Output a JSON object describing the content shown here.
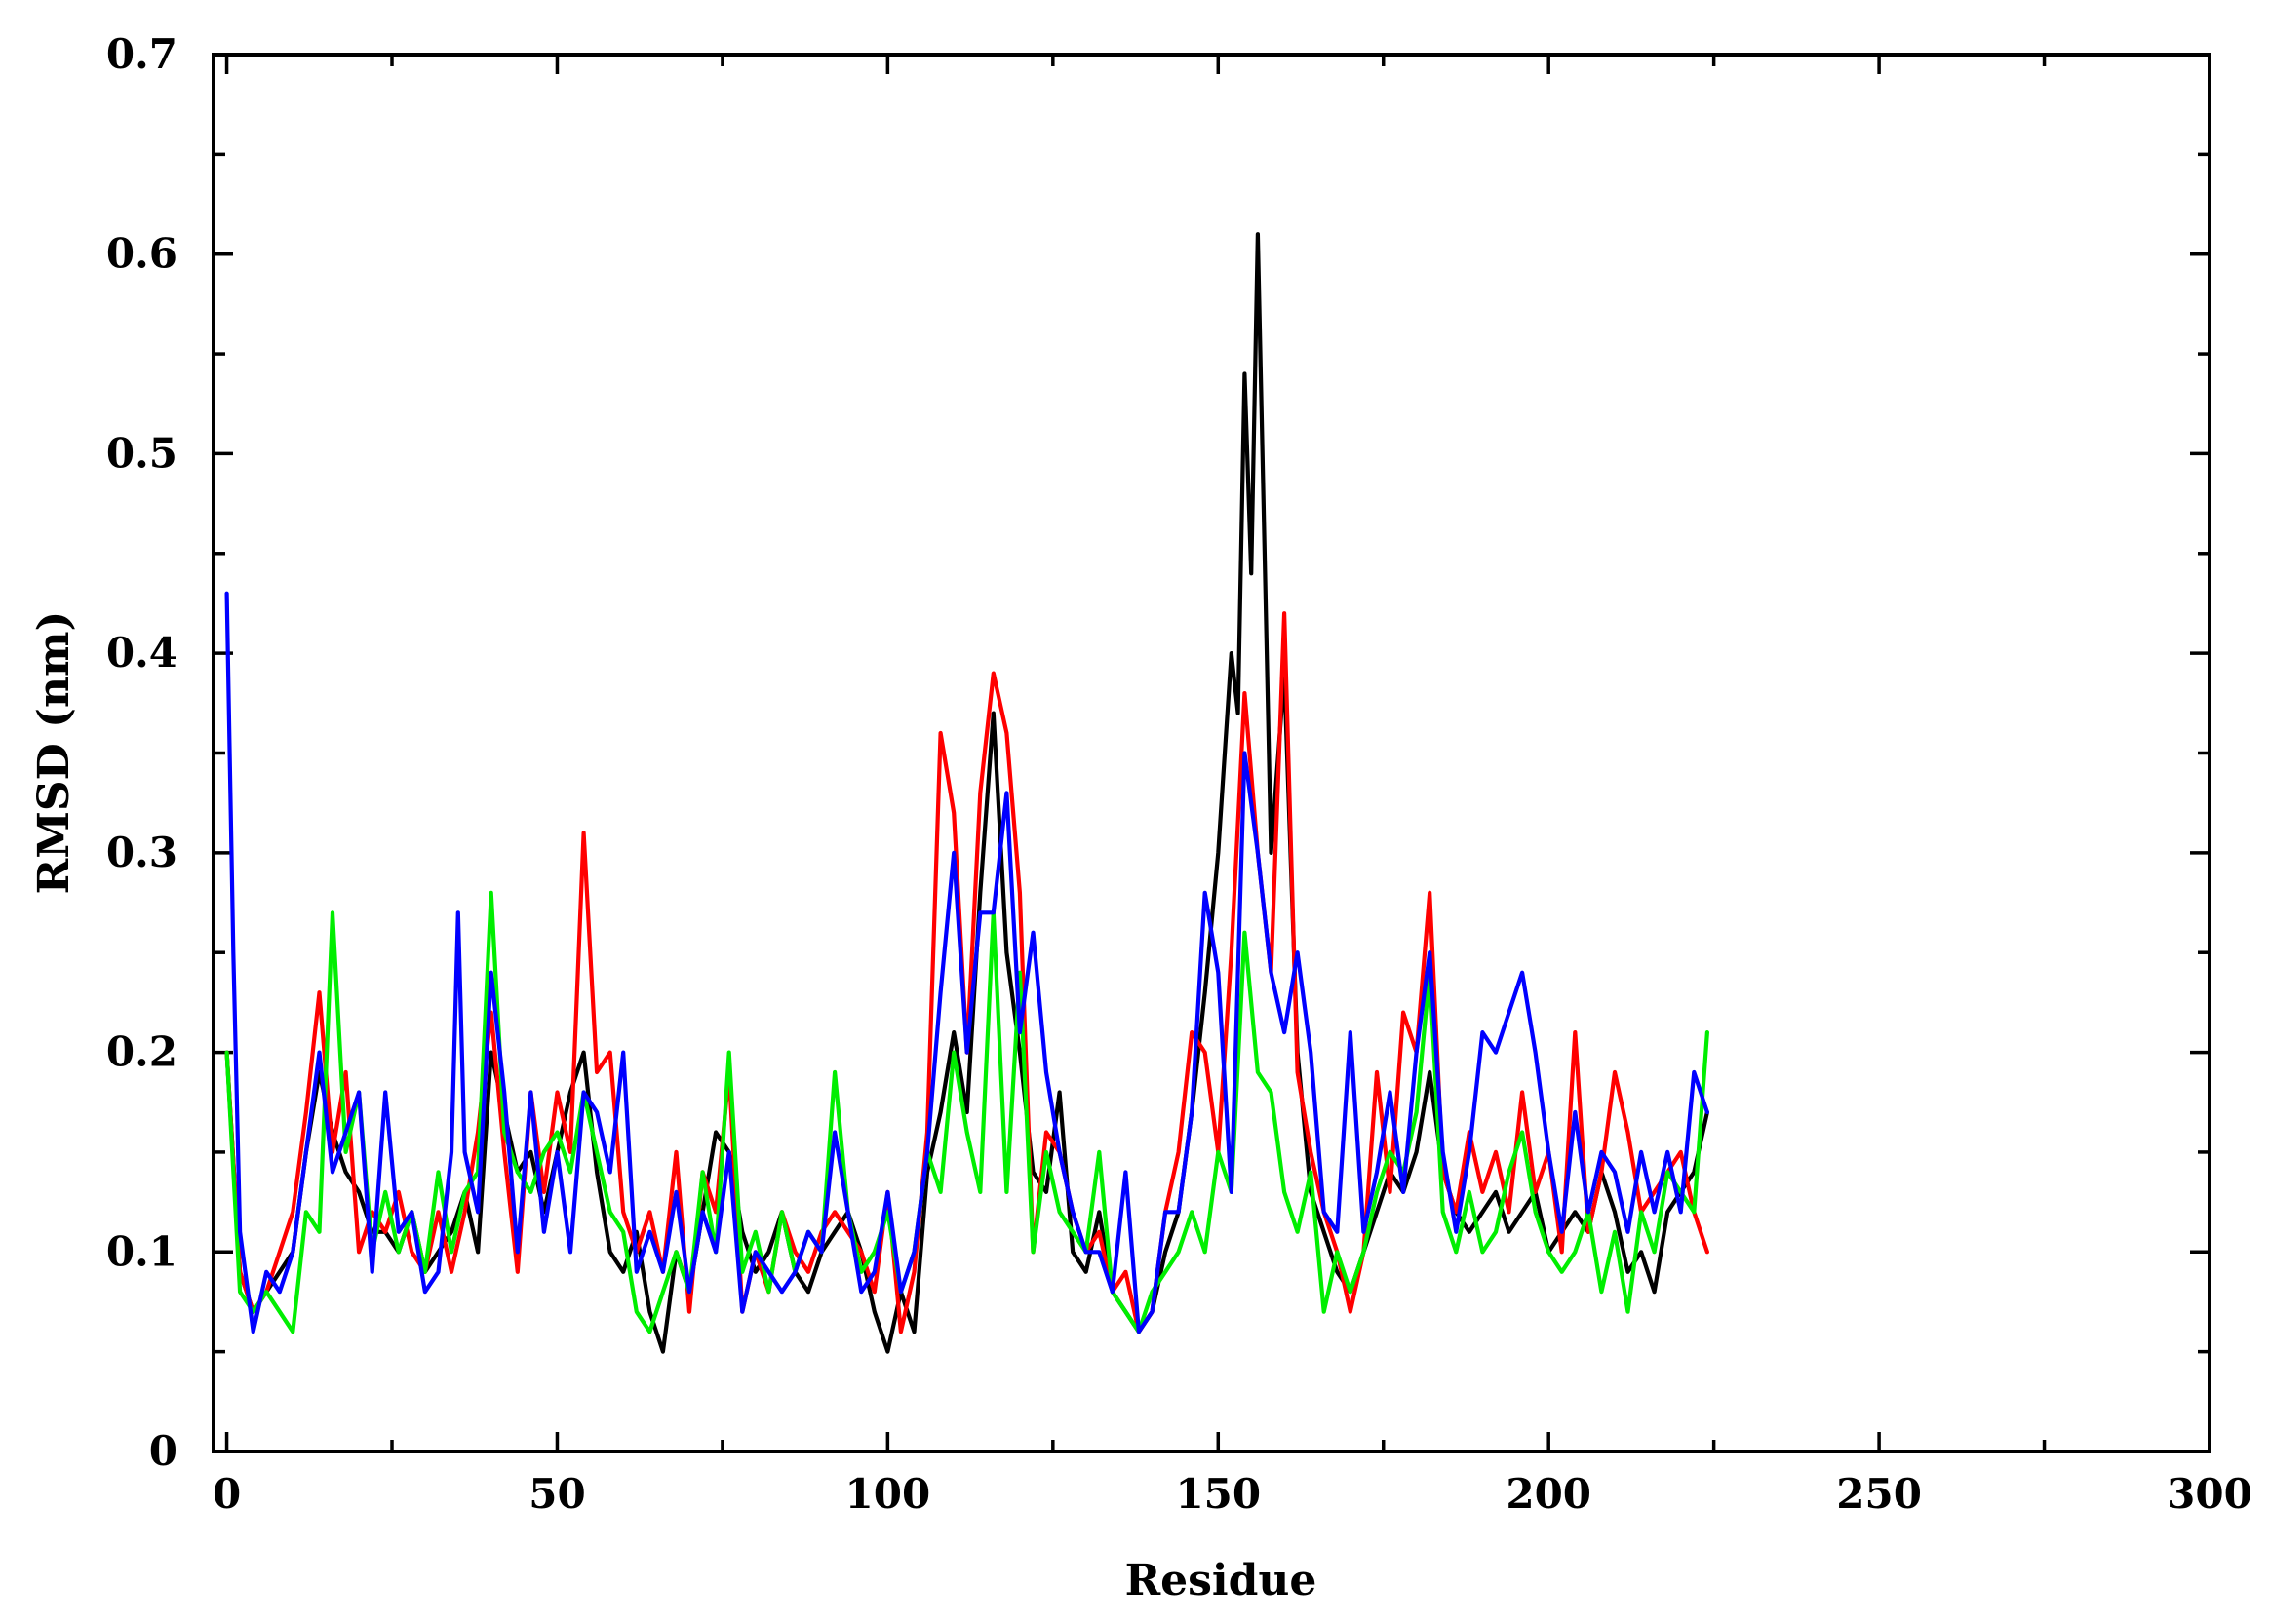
{
  "chart_data": {
    "type": "line",
    "title": "",
    "xlabel": "Residue",
    "ylabel": "RMSD (nm)",
    "xlim": [
      -2,
      300
    ],
    "ylim": [
      0,
      0.7
    ],
    "x_ticks": [
      "0",
      "50",
      "100",
      "150",
      "200",
      "250",
      "300"
    ],
    "y_ticks": [
      "0",
      "0.1",
      "0.2",
      "0.3",
      "0.4",
      "0.5",
      "0.6",
      "0.7"
    ],
    "grid": false,
    "legend": "none",
    "series": [
      {
        "color": "#000000",
        "x": [
          0,
          2,
          4,
          6,
          8,
          10,
          12,
          14,
          16,
          18,
          20,
          22,
          24,
          26,
          28,
          30,
          32,
          34,
          36,
          38,
          40,
          42,
          44,
          46,
          48,
          50,
          52,
          54,
          56,
          58,
          60,
          62,
          64,
          66,
          68,
          70,
          72,
          74,
          76,
          78,
          80,
          82,
          84,
          86,
          88,
          90,
          92,
          94,
          96,
          98,
          100,
          102,
          104,
          106,
          108,
          110,
          112,
          114,
          116,
          118,
          120,
          122,
          124,
          126,
          128,
          130,
          132,
          134,
          136,
          138,
          140,
          142,
          144,
          146,
          148,
          150,
          152,
          153,
          154,
          155,
          156,
          158,
          160,
          162,
          164,
          166,
          168,
          170,
          172,
          174,
          176,
          178,
          180,
          182,
          184,
          186,
          188,
          190,
          192,
          194,
          196,
          198,
          200,
          202,
          204,
          206,
          208,
          210,
          212,
          214,
          216,
          218,
          220,
          222,
          224
        ],
        "y": [
          0.2,
          0.09,
          0.07,
          0.08,
          0.09,
          0.1,
          0.15,
          0.19,
          0.16,
          0.14,
          0.13,
          0.11,
          0.11,
          0.1,
          0.12,
          0.09,
          0.1,
          0.11,
          0.13,
          0.1,
          0.2,
          0.17,
          0.14,
          0.15,
          0.12,
          0.15,
          0.18,
          0.2,
          0.14,
          0.1,
          0.09,
          0.11,
          0.07,
          0.05,
          0.1,
          0.08,
          0.12,
          0.16,
          0.15,
          0.11,
          0.09,
          0.1,
          0.12,
          0.09,
          0.08,
          0.1,
          0.11,
          0.12,
          0.1,
          0.07,
          0.05,
          0.08,
          0.06,
          0.14,
          0.17,
          0.21,
          0.17,
          0.28,
          0.37,
          0.25,
          0.2,
          0.14,
          0.13,
          0.18,
          0.1,
          0.09,
          0.12,
          0.08,
          0.07,
          0.06,
          0.07,
          0.1,
          0.12,
          0.17,
          0.23,
          0.3,
          0.4,
          0.37,
          0.54,
          0.44,
          0.61,
          0.3,
          0.39,
          0.2,
          0.13,
          0.11,
          0.09,
          0.08,
          0.1,
          0.12,
          0.14,
          0.13,
          0.15,
          0.19,
          0.14,
          0.12,
          0.11,
          0.12,
          0.13,
          0.11,
          0.12,
          0.13,
          0.1,
          0.11,
          0.12,
          0.11,
          0.14,
          0.12,
          0.09,
          0.1,
          0.08,
          0.12,
          0.13,
          0.14,
          0.17
        ]
      },
      {
        "color": "#ff0000",
        "x": [
          0,
          2,
          4,
          6,
          8,
          10,
          12,
          14,
          16,
          18,
          20,
          22,
          24,
          26,
          28,
          30,
          32,
          34,
          36,
          38,
          40,
          42,
          44,
          46,
          48,
          50,
          52,
          54,
          56,
          58,
          60,
          62,
          64,
          66,
          68,
          70,
          72,
          74,
          76,
          78,
          80,
          82,
          84,
          86,
          88,
          90,
          92,
          94,
          96,
          98,
          100,
          102,
          104,
          106,
          108,
          110,
          112,
          114,
          116,
          118,
          120,
          122,
          124,
          126,
          128,
          130,
          132,
          134,
          136,
          138,
          140,
          142,
          144,
          146,
          148,
          150,
          152,
          154,
          156,
          158,
          160,
          162,
          164,
          166,
          168,
          170,
          172,
          174,
          176,
          178,
          180,
          182,
          184,
          186,
          188,
          190,
          192,
          194,
          196,
          198,
          200,
          202,
          204,
          206,
          208,
          210,
          212,
          214,
          216,
          218,
          220,
          222,
          224
        ],
        "y": [
          0.2,
          0.09,
          0.07,
          0.08,
          0.1,
          0.12,
          0.17,
          0.23,
          0.15,
          0.19,
          0.1,
          0.12,
          0.11,
          0.13,
          0.1,
          0.09,
          0.12,
          0.09,
          0.12,
          0.16,
          0.22,
          0.15,
          0.09,
          0.18,
          0.13,
          0.18,
          0.15,
          0.31,
          0.19,
          0.2,
          0.12,
          0.1,
          0.12,
          0.09,
          0.15,
          0.07,
          0.14,
          0.12,
          0.19,
          0.07,
          0.1,
          0.08,
          0.12,
          0.1,
          0.09,
          0.11,
          0.12,
          0.11,
          0.1,
          0.08,
          0.13,
          0.06,
          0.09,
          0.16,
          0.36,
          0.32,
          0.2,
          0.33,
          0.39,
          0.36,
          0.28,
          0.1,
          0.16,
          0.15,
          0.12,
          0.1,
          0.11,
          0.08,
          0.09,
          0.06,
          0.07,
          0.12,
          0.15,
          0.21,
          0.2,
          0.15,
          0.25,
          0.38,
          0.3,
          0.24,
          0.42,
          0.19,
          0.15,
          0.12,
          0.1,
          0.07,
          0.1,
          0.19,
          0.13,
          0.22,
          0.2,
          0.28,
          0.14,
          0.12,
          0.16,
          0.13,
          0.15,
          0.12,
          0.18,
          0.13,
          0.15,
          0.1,
          0.21,
          0.11,
          0.14,
          0.19,
          0.16,
          0.12,
          0.13,
          0.14,
          0.15,
          0.12,
          0.1
        ]
      },
      {
        "color": "#00ee00",
        "x": [
          0,
          2,
          4,
          6,
          8,
          10,
          12,
          14,
          16,
          18,
          20,
          22,
          24,
          26,
          28,
          30,
          32,
          34,
          36,
          38,
          40,
          42,
          44,
          46,
          48,
          50,
          52,
          54,
          56,
          58,
          60,
          62,
          64,
          66,
          68,
          70,
          72,
          74,
          76,
          78,
          80,
          82,
          84,
          86,
          88,
          90,
          92,
          94,
          96,
          98,
          100,
          102,
          104,
          106,
          108,
          110,
          112,
          114,
          116,
          118,
          120,
          122,
          124,
          126,
          128,
          130,
          132,
          134,
          136,
          138,
          140,
          142,
          144,
          146,
          148,
          150,
          152,
          154,
          156,
          158,
          160,
          162,
          164,
          166,
          168,
          170,
          172,
          174,
          176,
          178,
          180,
          182,
          184,
          186,
          188,
          190,
          192,
          194,
          196,
          198,
          200,
          202,
          204,
          206,
          208,
          210,
          212,
          214,
          216,
          218,
          220,
          222,
          224
        ],
        "y": [
          0.2,
          0.08,
          0.07,
          0.08,
          0.07,
          0.06,
          0.12,
          0.11,
          0.27,
          0.15,
          0.18,
          0.1,
          0.13,
          0.1,
          0.12,
          0.09,
          0.14,
          0.1,
          0.13,
          0.14,
          0.28,
          0.16,
          0.14,
          0.13,
          0.15,
          0.16,
          0.14,
          0.18,
          0.15,
          0.12,
          0.11,
          0.07,
          0.06,
          0.08,
          0.1,
          0.08,
          0.14,
          0.1,
          0.2,
          0.09,
          0.11,
          0.08,
          0.12,
          0.09,
          0.11,
          0.1,
          0.19,
          0.12,
          0.09,
          0.1,
          0.12,
          0.08,
          0.1,
          0.15,
          0.13,
          0.2,
          0.16,
          0.13,
          0.27,
          0.13,
          0.24,
          0.1,
          0.15,
          0.12,
          0.11,
          0.1,
          0.15,
          0.08,
          0.07,
          0.06,
          0.08,
          0.09,
          0.1,
          0.12,
          0.1,
          0.15,
          0.13,
          0.26,
          0.19,
          0.18,
          0.13,
          0.11,
          0.14,
          0.07,
          0.1,
          0.08,
          0.1,
          0.13,
          0.15,
          0.14,
          0.17,
          0.24,
          0.12,
          0.1,
          0.13,
          0.1,
          0.11,
          0.14,
          0.16,
          0.12,
          0.1,
          0.09,
          0.1,
          0.12,
          0.08,
          0.11,
          0.07,
          0.12,
          0.1,
          0.14,
          0.13,
          0.12,
          0.21
        ]
      },
      {
        "color": "#0000ff",
        "x": [
          0,
          1,
          2,
          4,
          6,
          8,
          10,
          12,
          14,
          16,
          18,
          20,
          22,
          24,
          26,
          28,
          30,
          32,
          34,
          35,
          36,
          38,
          40,
          42,
          44,
          46,
          48,
          50,
          52,
          54,
          56,
          58,
          60,
          62,
          64,
          66,
          68,
          70,
          72,
          74,
          76,
          78,
          80,
          82,
          84,
          86,
          88,
          90,
          92,
          94,
          96,
          98,
          100,
          102,
          104,
          106,
          108,
          110,
          112,
          114,
          116,
          118,
          120,
          122,
          124,
          126,
          128,
          130,
          132,
          134,
          136,
          138,
          140,
          142,
          144,
          146,
          148,
          150,
          152,
          154,
          156,
          158,
          160,
          162,
          164,
          166,
          168,
          170,
          172,
          174,
          176,
          178,
          180,
          182,
          184,
          186,
          188,
          190,
          192,
          194,
          196,
          198,
          200,
          202,
          204,
          206,
          208,
          210,
          212,
          214,
          216,
          218,
          220,
          222,
          224
        ],
        "y": [
          0.43,
          0.25,
          0.11,
          0.06,
          0.09,
          0.08,
          0.1,
          0.15,
          0.2,
          0.14,
          0.16,
          0.18,
          0.09,
          0.18,
          0.11,
          0.12,
          0.08,
          0.09,
          0.15,
          0.27,
          0.15,
          0.12,
          0.24,
          0.18,
          0.1,
          0.18,
          0.11,
          0.15,
          0.1,
          0.18,
          0.17,
          0.14,
          0.2,
          0.09,
          0.11,
          0.09,
          0.13,
          0.08,
          0.12,
          0.1,
          0.15,
          0.07,
          0.1,
          0.09,
          0.08,
          0.09,
          0.11,
          0.1,
          0.16,
          0.12,
          0.08,
          0.09,
          0.13,
          0.08,
          0.1,
          0.15,
          0.23,
          0.3,
          0.2,
          0.27,
          0.27,
          0.33,
          0.21,
          0.26,
          0.19,
          0.15,
          0.12,
          0.1,
          0.1,
          0.08,
          0.14,
          0.06,
          0.07,
          0.12,
          0.12,
          0.17,
          0.28,
          0.24,
          0.13,
          0.35,
          0.3,
          0.24,
          0.21,
          0.25,
          0.2,
          0.12,
          0.11,
          0.21,
          0.11,
          0.14,
          0.18,
          0.13,
          0.2,
          0.25,
          0.15,
          0.11,
          0.15,
          0.21,
          0.2,
          0.22,
          0.24,
          0.2,
          0.15,
          0.11,
          0.17,
          0.12,
          0.15,
          0.14,
          0.11,
          0.15,
          0.12,
          0.15,
          0.12,
          0.19,
          0.17
        ]
      }
    ]
  }
}
